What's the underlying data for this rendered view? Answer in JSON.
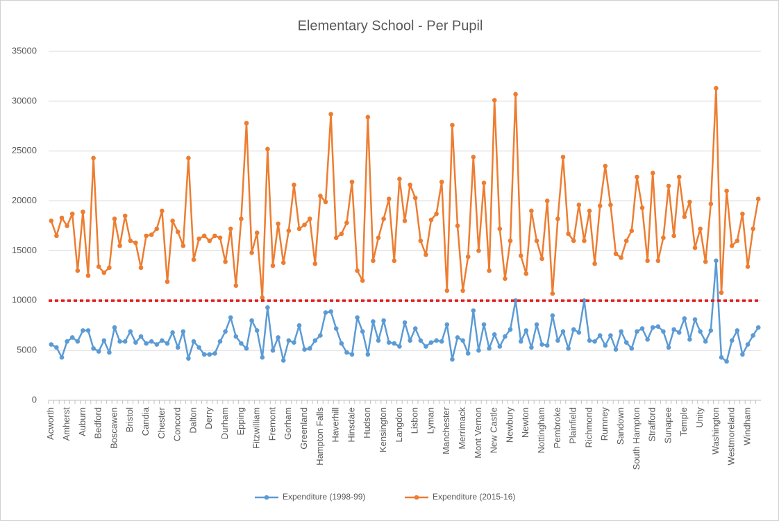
{
  "chart_data": {
    "type": "line",
    "title": "Elementary School - Per Pupil",
    "categories": [
      "Acworth",
      null,
      null,
      "Amherst",
      null,
      null,
      "Auburn",
      null,
      null,
      "Bedford",
      null,
      null,
      "Boscawen",
      null,
      null,
      "Bristol",
      null,
      null,
      "Candia",
      null,
      null,
      "Chester",
      null,
      null,
      "Concord",
      null,
      null,
      "Dalton",
      null,
      null,
      "Derry",
      null,
      null,
      "Durham",
      null,
      null,
      "Epping",
      null,
      null,
      "Fitzwilliam",
      null,
      null,
      "Fremont",
      null,
      null,
      "Gorham",
      null,
      null,
      "Greenland",
      null,
      null,
      "Hampton Falls",
      null,
      null,
      "Haverhill",
      null,
      null,
      "Hinsdale",
      null,
      null,
      "Hudson",
      null,
      null,
      "Kensington",
      null,
      null,
      "Langdon",
      null,
      null,
      "Lisbon",
      null,
      null,
      "Lyman",
      null,
      null,
      "Manchester",
      null,
      null,
      "Merrimack",
      null,
      null,
      "Mont Vernon",
      null,
      null,
      "New Castle",
      null,
      null,
      "Newbury",
      null,
      null,
      "Newton",
      null,
      null,
      "Nottingham",
      null,
      null,
      "Pembroke",
      null,
      null,
      "Plainfield",
      null,
      null,
      "Richmond",
      null,
      null,
      "Rumney",
      null,
      null,
      "Sandown",
      null,
      null,
      "South Hampton",
      null,
      null,
      "Strafford",
      null,
      null,
      "Sunapee",
      null,
      null,
      "Temple",
      null,
      null,
      "Unity",
      null,
      null,
      "Washington",
      null,
      null,
      "Westmoreland",
      null,
      null,
      "Windham",
      null,
      null
    ],
    "series": [
      {
        "name": "Expenditure (1998-99)",
        "color": "#5b9bd5",
        "values": [
          5600,
          5300,
          4300,
          5900,
          6300,
          5900,
          7000,
          7000,
          5200,
          4900,
          6000,
          4800,
          7300,
          5900,
          5900,
          6900,
          5800,
          6400,
          5700,
          5900,
          5600,
          6000,
          5700,
          6800,
          5300,
          6900,
          4200,
          5900,
          5300,
          4600,
          4600,
          4700,
          5900,
          6900,
          8300,
          6400,
          5700,
          5200,
          8000,
          7000,
          4300,
          9300,
          5000,
          6300,
          4000,
          6000,
          5800,
          7500,
          5100,
          5200,
          6000,
          6500,
          8800,
          8900,
          7200,
          5700,
          4800,
          4600,
          8300,
          6900,
          4600,
          7900,
          6000,
          8000,
          5800,
          5700,
          5400,
          7800,
          6000,
          7200,
          6000,
          5400,
          5800,
          6000,
          5900,
          7600,
          4100,
          6300,
          6000,
          4700,
          9000,
          5000,
          7600,
          5200,
          6600,
          5400,
          6400,
          7100,
          10000,
          5900,
          7000,
          5300,
          7600,
          5600,
          5500,
          8500,
          6000,
          6900,
          5200,
          7100,
          6800,
          10000,
          6000,
          5900,
          6500,
          5500,
          6500,
          5100,
          6900,
          5800,
          5200,
          6900,
          7200,
          6100,
          7300,
          7400,
          6900,
          5300,
          7100,
          6800,
          8200,
          6100,
          8100,
          6900,
          5900,
          7000,
          14000,
          4300,
          3900,
          6000,
          7000,
          4600,
          5600,
          6500,
          7300
        ]
      },
      {
        "name": "Expenditure (2015-16)",
        "color": "#ed7d31",
        "values": [
          18000,
          16500,
          18300,
          17500,
          18700,
          13000,
          18900,
          12500,
          24300,
          13400,
          12800,
          13300,
          18200,
          15500,
          18500,
          16000,
          15800,
          13300,
          16500,
          16600,
          17200,
          19000,
          11900,
          18000,
          16900,
          15500,
          24300,
          14100,
          16200,
          16500,
          16000,
          16500,
          16300,
          13900,
          17200,
          11500,
          18200,
          27800,
          14800,
          16800,
          10300,
          25200,
          13500,
          17700,
          13800,
          17000,
          21600,
          17200,
          17600,
          18200,
          13700,
          20500,
          19900,
          28700,
          16300,
          16700,
          17800,
          21900,
          13000,
          12000,
          28400,
          14000,
          16300,
          18200,
          20200,
          14000,
          22200,
          18000,
          21600,
          20300,
          16000,
          14600,
          18100,
          18700,
          21900,
          11000,
          27600,
          17500,
          11000,
          14400,
          24400,
          15000,
          21800,
          13000,
          30100,
          17200,
          12200,
          16000,
          30700,
          14500,
          12700,
          19000,
          16000,
          14200,
          20000,
          10700,
          18200,
          24400,
          16700,
          16000,
          19600,
          16000,
          19000,
          13700,
          19500,
          23500,
          19600,
          14700,
          14300,
          16000,
          17000,
          22400,
          19300,
          14000,
          22800,
          14000,
          16300,
          21500,
          16500,
          22400,
          18400,
          19900,
          15300,
          17200,
          13900,
          19700,
          31300,
          10800,
          21000,
          15500,
          16000,
          18700,
          13400,
          17200,
          20200
        ]
      }
    ],
    "reference_line": {
      "value": 10000,
      "color": "#e31a1c"
    },
    "ylim": [
      0,
      35000
    ],
    "yticks": [
      0,
      5000,
      10000,
      15000,
      20000,
      25000,
      30000,
      35000
    ],
    "grid": true,
    "legend": "bottom"
  }
}
